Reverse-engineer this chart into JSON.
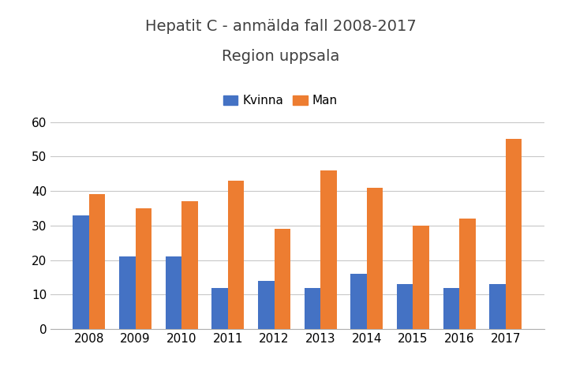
{
  "title_line1": "Hepatit C - anmälda fall 2008-2017",
  "title_line2": "Region uppsala",
  "years": [
    2008,
    2009,
    2010,
    2011,
    2012,
    2013,
    2014,
    2015,
    2016,
    2017
  ],
  "kvinna": [
    33,
    21,
    21,
    12,
    14,
    12,
    16,
    13,
    12,
    13
  ],
  "man": [
    39,
    35,
    37,
    43,
    29,
    46,
    41,
    30,
    32,
    55
  ],
  "kvinna_color": "#4472C4",
  "man_color": "#ED7D31",
  "legend_kvinna": "Kvinna",
  "legend_man": "Man",
  "ylim": [
    0,
    65
  ],
  "yticks": [
    0,
    10,
    20,
    30,
    40,
    50,
    60
  ],
  "background_color": "#FFFFFF",
  "grid_color": "#C8C8C8",
  "title_fontsize": 14,
  "tick_fontsize": 11,
  "legend_fontsize": 11,
  "bar_width": 0.35
}
